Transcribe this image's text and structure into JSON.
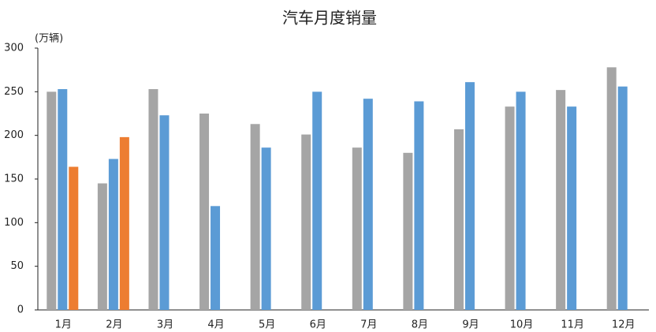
{
  "chart_data": {
    "type": "bar",
    "title": "汽车月度销量",
    "y_label": "(万辆)",
    "categories": [
      "1月",
      "2月",
      "3月",
      "4月",
      "5月",
      "6月",
      "7月",
      "8月",
      "9月",
      "10月",
      "11月",
      "12月"
    ],
    "series": [
      {
        "color": "#a5a5a5",
        "values": [
          250,
          145,
          253,
          225,
          213,
          201,
          186,
          180,
          207,
          233,
          252,
          278
        ]
      },
      {
        "color": "#5b9bd5",
        "values": [
          253,
          173,
          223,
          119,
          186,
          250,
          242,
          239,
          261,
          250,
          233,
          256
        ]
      },
      {
        "color": "#ed7d31",
        "values": [
          164,
          198,
          null,
          null,
          null,
          null,
          null,
          null,
          null,
          null,
          null,
          null
        ]
      }
    ],
    "ylim": [
      0,
      300
    ],
    "yticks": [
      0,
      50,
      100,
      150,
      200,
      250,
      300
    ],
    "grid": false
  }
}
